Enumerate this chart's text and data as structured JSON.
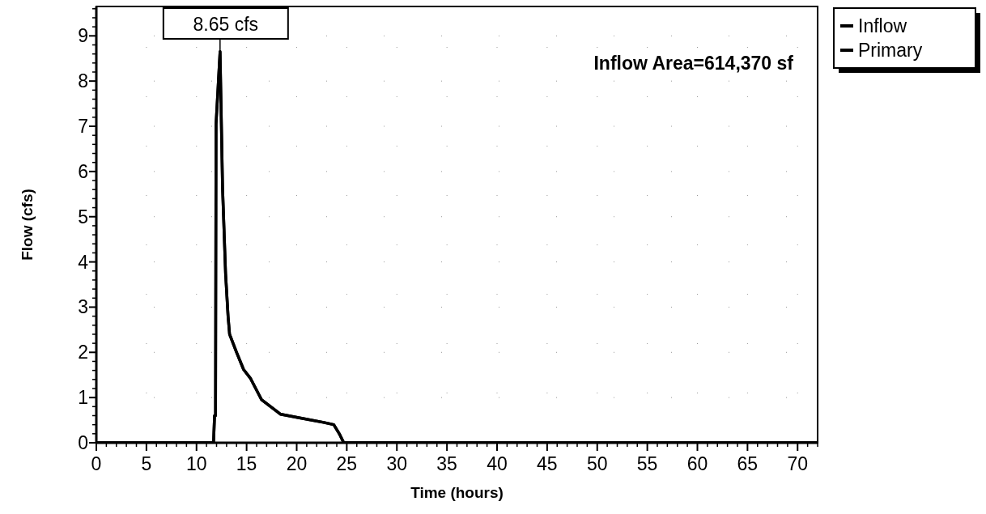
{
  "chart_data": {
    "type": "line",
    "xlabel": "Time  (hours)",
    "ylabel": "Flow  (cfs)",
    "xlim": [
      0,
      72
    ],
    "ylim": [
      0,
      9.65
    ],
    "xticks": [
      0,
      5,
      10,
      15,
      20,
      25,
      30,
      35,
      40,
      45,
      50,
      55,
      60,
      65,
      70
    ],
    "yticks": [
      0,
      1,
      2,
      3,
      4,
      5,
      6,
      7,
      8,
      9
    ],
    "grid": true,
    "legend": "top right",
    "line_style": "solid",
    "marker": "none",
    "annotations": [
      {
        "text": "8.65 cfs",
        "x": 12.35,
        "y": 8.65
      },
      "Inflow Area=614,370 sf"
    ],
    "series": [
      {
        "name": "Inflow",
        "color": "#000000",
        "x": [
          0,
          11.7,
          11.8,
          11.9,
          11.95,
          12.35,
          12.6,
          12.9,
          13.15,
          13.3,
          14.0,
          14.7,
          15.4,
          16.5,
          18.4,
          20.5,
          22.7,
          23.7,
          24.3,
          24.7,
          72
        ],
        "values": [
          0,
          0,
          0.6,
          0.6,
          7.05,
          8.65,
          5.64,
          3.75,
          2.8,
          2.4,
          2.0,
          1.62,
          1.42,
          0.95,
          0.63,
          0.54,
          0.45,
          0.4,
          0.18,
          0,
          0
        ]
      },
      {
        "name": "Primary",
        "color": "#000000",
        "x": [
          0,
          11.7,
          11.8,
          11.9,
          11.95,
          12.35,
          12.6,
          12.9,
          13.15,
          13.3,
          14.0,
          14.7,
          15.4,
          16.5,
          18.4,
          20.5,
          22.7,
          23.7,
          24.3,
          24.7,
          72
        ],
        "values": [
          0,
          0,
          0.6,
          0.6,
          7.05,
          8.65,
          5.64,
          3.75,
          2.8,
          2.4,
          2.0,
          1.62,
          1.42,
          0.95,
          0.63,
          0.54,
          0.45,
          0.4,
          0.18,
          0,
          0
        ]
      }
    ]
  }
}
